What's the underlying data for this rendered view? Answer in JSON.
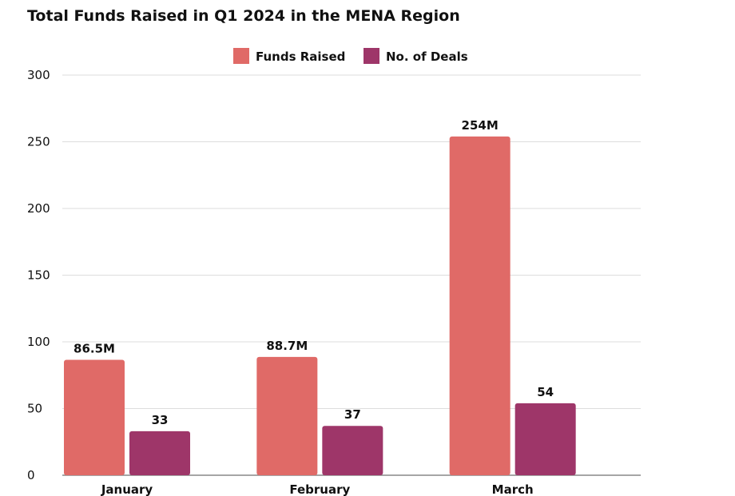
{
  "chart_data": {
    "type": "bar",
    "title": "Total Funds Raised in Q1 2024 in the MENA Region",
    "categories": [
      "January",
      "February",
      "March"
    ],
    "series": [
      {
        "name": "Funds Raised",
        "values": [
          86.5,
          88.7,
          254
        ],
        "labels": [
          "86.5M",
          "88.7M",
          "254M"
        ],
        "color": "#e06a67"
      },
      {
        "name": "No. of Deals",
        "values": [
          33,
          37,
          54
        ],
        "labels": [
          "33",
          "37",
          "54"
        ],
        "color": "#9e3669"
      }
    ],
    "ylim": [
      0,
      300
    ],
    "yticks": [
      0,
      50,
      100,
      150,
      200,
      250,
      300
    ],
    "grid": true,
    "legend_position": "top"
  }
}
